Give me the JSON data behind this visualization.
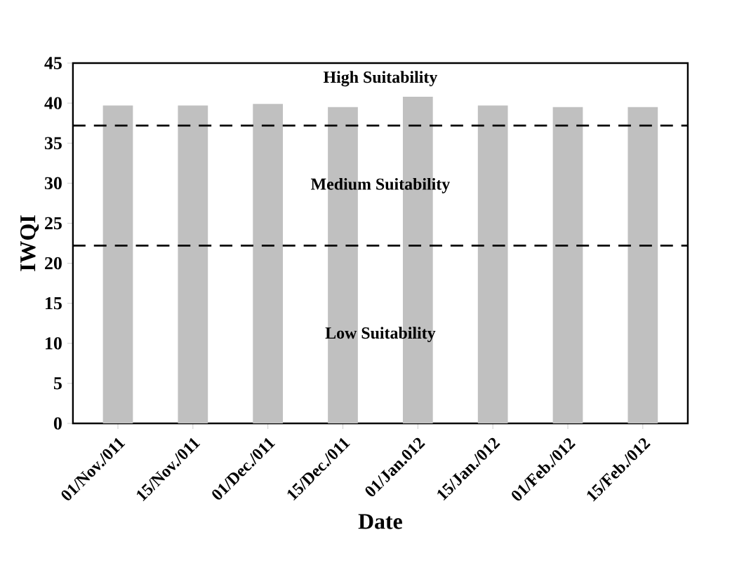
{
  "chart_data": {
    "type": "bar",
    "xlabel": "Date",
    "ylabel": "IWQI",
    "categories": [
      "01/Nov./011",
      "15/Nov./011",
      "01/Dec./011",
      "15/Dec./011",
      "01/Jan.012",
      "15/Jan./012",
      "01/Feb./012",
      "15/Feb./012"
    ],
    "values": [
      39.7,
      39.7,
      39.9,
      39.5,
      40.8,
      39.7,
      39.5,
      39.5
    ],
    "color": "#c0c0c0",
    "ylim": [
      0,
      45
    ],
    "yticks": [
      0,
      5,
      10,
      15,
      20,
      25,
      30,
      35,
      40,
      45
    ],
    "grid": false,
    "ref_lines": [
      {
        "axis": "y",
        "value": 37.2,
        "line_style": "dashed",
        "color": "#000000"
      },
      {
        "axis": "y",
        "value": 22.2,
        "line_style": "dashed",
        "color": "#000000"
      }
    ],
    "annotations": [
      "High Suitability",
      "Medium Suitability",
      "Low Suitability"
    ]
  }
}
